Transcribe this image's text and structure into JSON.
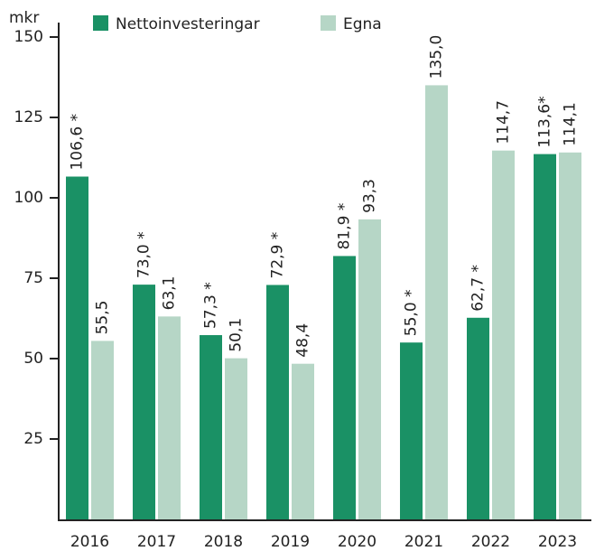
{
  "chart_data": {
    "type": "bar",
    "y_label": "mkr",
    "categories": [
      "2016",
      "2017",
      "2018",
      "2019",
      "2020",
      "2021",
      "2022",
      "2023"
    ],
    "series": [
      {
        "name": "Nettoinvesteringar",
        "color": "#1a9165",
        "values": [
          106.6,
          73.0,
          57.3,
          72.9,
          81.9,
          55.0,
          62.7,
          113.6
        ],
        "value_labels": [
          "106,6 *",
          "73,0 *",
          "57,3 *",
          "72,9 *",
          "81,9 *",
          "55,0 *",
          "62,7 *",
          "113,6*"
        ]
      },
      {
        "name": "Egna",
        "color": "#b6d6c6",
        "values": [
          55.5,
          63.1,
          50.1,
          48.4,
          93.3,
          135.0,
          114.7,
          114.1
        ],
        "value_labels": [
          "55,5",
          "63,1",
          "50,1",
          "48,4",
          "93,3",
          "135,0",
          "114,7",
          "114,1"
        ]
      }
    ],
    "ylim": [
      0,
      150
    ],
    "yticks": [
      25,
      50,
      75,
      100,
      125,
      150
    ],
    "legend": "top"
  }
}
